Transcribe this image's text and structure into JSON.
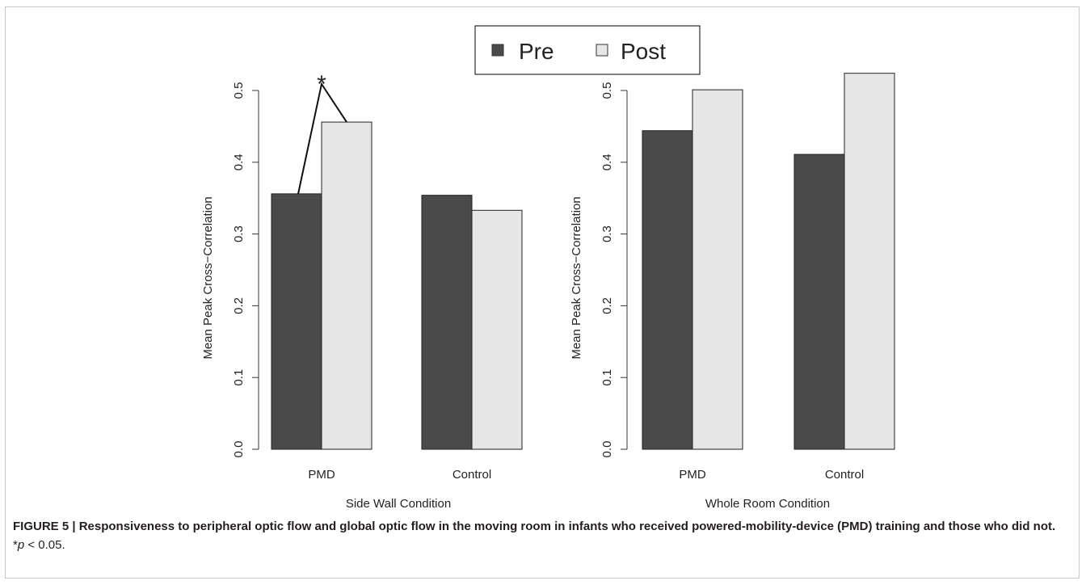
{
  "legend": {
    "items": [
      {
        "label": "Pre",
        "color": "#4a4a4a"
      },
      {
        "label": "Post",
        "color": "#e6e6e6"
      }
    ]
  },
  "chart_data": [
    {
      "type": "bar",
      "title": "",
      "xlabel": "Side Wall Condition",
      "ylabel": "Mean Peak Cross−Correlation",
      "categories": [
        "PMD",
        "Control"
      ],
      "series": [
        {
          "name": "Pre",
          "values": [
            0.356,
            0.354
          ]
        },
        {
          "name": "Post",
          "values": [
            0.456,
            0.333
          ]
        }
      ],
      "ylim": [
        0,
        0.5
      ],
      "yticks": [
        "0.0",
        "0.1",
        "0.2",
        "0.3",
        "0.4",
        "0.5"
      ],
      "annotation": "*",
      "grid": false
    },
    {
      "type": "bar",
      "title": "",
      "xlabel": "Whole Room Condition",
      "ylabel": "Mean Peak Cross−Correlation",
      "categories": [
        "PMD",
        "Control"
      ],
      "series": [
        {
          "name": "Pre",
          "values": [
            0.444,
            0.411
          ]
        },
        {
          "name": "Post",
          "values": [
            0.501,
            0.524
          ]
        }
      ],
      "ylim": [
        0,
        0.5
      ],
      "yticks": [
        "0.0",
        "0.1",
        "0.2",
        "0.3",
        "0.4",
        "0.5"
      ],
      "grid": false
    }
  ],
  "caption": {
    "label": "FIGURE 5 | Responsiveness to peripheral optic flow and global optic flow in the moving room in infants who received powered-mobility-device (PMD) training and those who did not.",
    "sig_star": "*",
    "sig_p": "p",
    "sig_rest": " < 0.05."
  }
}
